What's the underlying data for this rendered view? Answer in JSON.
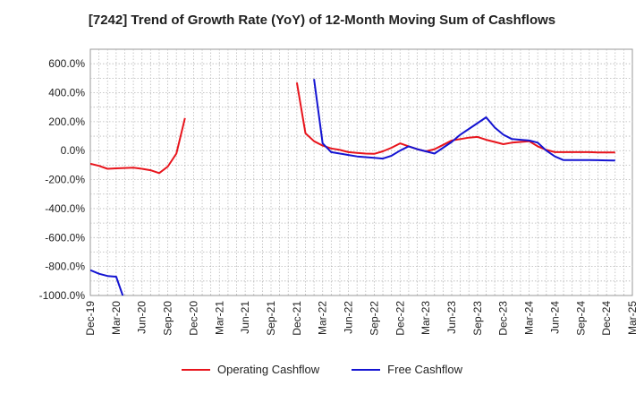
{
  "chart_data": {
    "type": "line",
    "title": "[7242]  Trend of Growth Rate (YoY) of 12-Month Moving Sum of Cashflows",
    "xlabel": "",
    "ylabel": "",
    "ylim": [
      -1000,
      700
    ],
    "yticks": [
      600,
      400,
      200,
      0,
      -200,
      -400,
      -600,
      -800,
      -1000
    ],
    "ytick_labels": [
      "600.0%",
      "400.0%",
      "200.0%",
      "0.0%",
      "-200.0%",
      "-400.0%",
      "-600.0%",
      "-800.0%",
      "-1000.0%"
    ],
    "x_tick_labels": [
      "Dec-19",
      "Mar-20",
      "Jun-20",
      "Sep-20",
      "Dec-20",
      "Mar-21",
      "Jun-21",
      "Sep-21",
      "Dec-21",
      "Mar-22",
      "Jun-22",
      "Sep-22",
      "Dec-22",
      "Mar-23",
      "Jun-23",
      "Sep-23",
      "Dec-23",
      "Mar-24",
      "Jun-24",
      "Sep-24",
      "Dec-24",
      "Mar-25"
    ],
    "x_start": "Dec-19",
    "x_step": "1 month",
    "grid": true,
    "legend_position": "bottom",
    "series": [
      {
        "name": "Operating Cashflow",
        "color": "#e8141c",
        "values": [
          -90,
          -105,
          -125,
          -122,
          -120,
          -118,
          -125,
          -135,
          -155,
          -110,
          -20,
          225,
          null,
          null,
          null,
          null,
          null,
          null,
          null,
          null,
          null,
          null,
          null,
          null,
          470,
          120,
          65,
          35,
          15,
          5,
          -10,
          -15,
          -20,
          -22,
          -5,
          20,
          50,
          30,
          10,
          -5,
          10,
          40,
          70,
          80,
          90,
          95,
          75,
          60,
          45,
          55,
          60,
          65,
          30,
          5,
          -10,
          -10,
          -10,
          -10,
          -10,
          -12,
          -12,
          -12
        ]
      },
      {
        "name": "Free Cashflow",
        "color": "#1414d2",
        "values": [
          -825,
          -850,
          -865,
          -870,
          -1040,
          null,
          null,
          null,
          null,
          null,
          null,
          null,
          null,
          null,
          null,
          null,
          null,
          null,
          null,
          null,
          null,
          null,
          null,
          null,
          null,
          null,
          495,
          50,
          -10,
          -20,
          -30,
          -40,
          -45,
          -50,
          -55,
          -35,
          0,
          30,
          10,
          -5,
          -20,
          20,
          60,
          110,
          150,
          190,
          230,
          160,
          110,
          80,
          75,
          70,
          55,
          0,
          -40,
          -65,
          -65,
          -65,
          -65,
          -66,
          -67,
          -68
        ]
      }
    ]
  }
}
